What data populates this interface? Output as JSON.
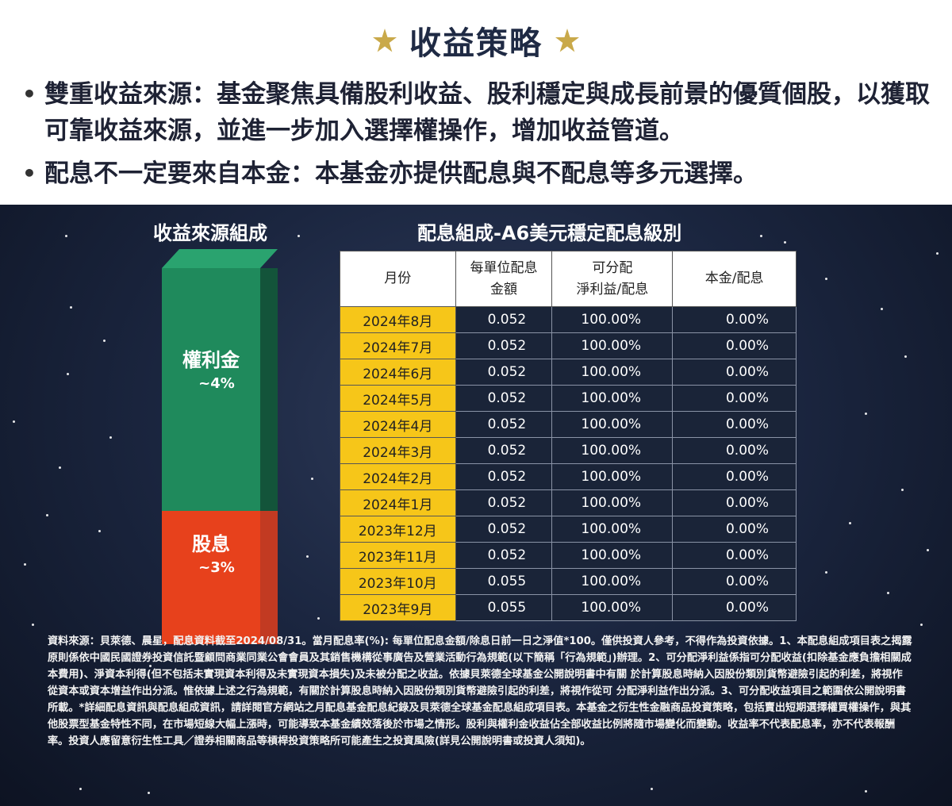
{
  "header": {
    "title": "收益策略",
    "bullets": [
      "雙重收益來源：基金聚焦具備股利收益、股利穩定與成長前景的優質個股，以獲取可靠收益來源，並進一步加入選擇權操作，增加收益管道。",
      "配息不一定要來自本金：本基金亦提供配息與不配息等多元選擇。"
    ]
  },
  "colors": {
    "star": "#c9a94a",
    "green": "#1f8a5c",
    "red": "#e7411c",
    "month_cell": "#f6c619"
  },
  "income_source": {
    "title": "收益來源組成",
    "segments": [
      {
        "name": "權利金",
        "pct": "~4%"
      },
      {
        "name": "股息",
        "pct": "~3%"
      }
    ]
  },
  "dividend_table": {
    "title": "配息組成-A6美元穩定配息級別",
    "headers": {
      "month": "月份",
      "amount_line1": "每單位配息",
      "amount_line2": "金額",
      "distributable_line1": "可分配",
      "distributable_line2": "淨利益/配息",
      "principal": "本金/配息"
    },
    "rows": [
      {
        "month": "2024年8月",
        "amount": "0.052",
        "distributable": "100.00%",
        "principal": "0.00%"
      },
      {
        "month": "2024年7月",
        "amount": "0.052",
        "distributable": "100.00%",
        "principal": "0.00%"
      },
      {
        "month": "2024年6月",
        "amount": "0.052",
        "distributable": "100.00%",
        "principal": "0.00%"
      },
      {
        "month": "2024年5月",
        "amount": "0.052",
        "distributable": "100.00%",
        "principal": "0.00%"
      },
      {
        "month": "2024年4月",
        "amount": "0.052",
        "distributable": "100.00%",
        "principal": "0.00%"
      },
      {
        "month": "2024年3月",
        "amount": "0.052",
        "distributable": "100.00%",
        "principal": "0.00%"
      },
      {
        "month": "2024年2月",
        "amount": "0.052",
        "distributable": "100.00%",
        "principal": "0.00%"
      },
      {
        "month": "2024年1月",
        "amount": "0.052",
        "distributable": "100.00%",
        "principal": "0.00%"
      },
      {
        "month": "2023年12月",
        "amount": "0.052",
        "distributable": "100.00%",
        "principal": "0.00%"
      },
      {
        "month": "2023年11月",
        "amount": "0.052",
        "distributable": "100.00%",
        "principal": "0.00%"
      },
      {
        "month": "2023年10月",
        "amount": "0.055",
        "distributable": "100.00%",
        "principal": "0.00%"
      },
      {
        "month": "2023年9月",
        "amount": "0.055",
        "distributable": "100.00%",
        "principal": "0.00%"
      }
    ]
  },
  "footnote": "資料來源：貝萊德、晨星，配息資料截至2024/08/31。當月配息率(%): 每單位配息金額/除息日前一日之淨值*100。僅供投資人參考，不得作為投資依據。1、本配息組成項目表之揭露原則係依中國民國證券投資信託暨顧問商業同業公會會員及其銷售機構從事廣告及營業活動行為規範(以下簡稱「行為規範」)辦理。2、可分配淨利益係指可分配收益(扣除基金應負擔相關成本費用)、淨資本利得(但不包括未實現資本利得及未實現資本損失)及未被分配之收益。依據貝萊德全球基金公開說明書中有關 於計算股息時納入因股份類別貨幣避險引起的利差，將視作從資本或資本增益作出分派。惟依據上述之行為規範，有關於計算股息時納入因股份類別貨幣避險引起的利差，將視作從可 分配淨利益作出分派。3、可分配收益項目之範圍依公開說明書所載。*詳細配息資訊與配息組成資訊，請詳閱官方網站之月配息基金配息紀錄及貝萊德全球基金配息組成項目表。本基金之衍生性金融商品投資策略，包括賣出短期選擇權買權操作，與其他股票型基金特性不同，在市場短線大幅上漲時，可能導致本基金績效落後於市場之情形。股利與權利金收益佔全部收益比例將隨市場變化而變動。收益率不代表配息率，亦不代表報酬率。投資人應留意衍生性工具／證券相關商品等槓桿投資策略所可能產生之投資風險(詳見公開說明書或投資人須知)。"
}
